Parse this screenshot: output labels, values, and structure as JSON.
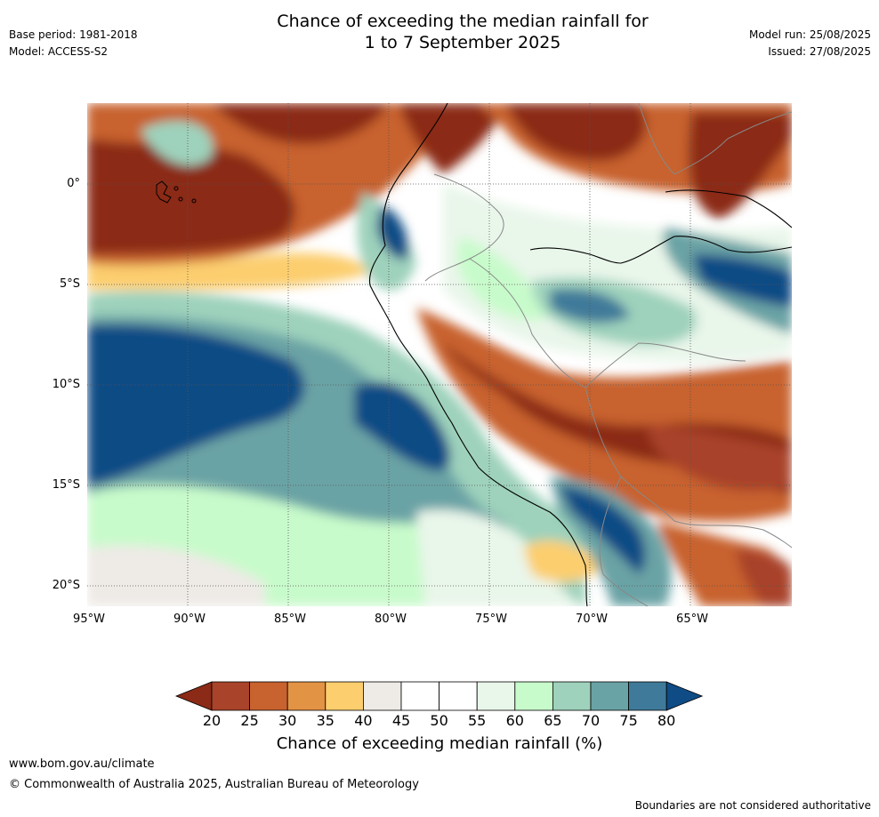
{
  "header": {
    "title_line1": "Chance of exceeding the median rainfall for",
    "title_line2": "1 to 7 September 2025",
    "base_period": "Base period: 1981-2018",
    "model": "Model: ACCESS-S2",
    "model_run": "Model run: 25/08/2025",
    "issued": "Issued: 27/08/2025"
  },
  "map": {
    "lat_labels": [
      "0°",
      "5°S",
      "10°S",
      "15°S",
      "20°S"
    ],
    "lon_labels": [
      "95°W",
      "90°W",
      "85°W",
      "80°W",
      "75°W",
      "70°W",
      "65°W"
    ]
  },
  "colorbar": {
    "ticks": [
      "20",
      "25",
      "30",
      "35",
      "40",
      "45",
      "50",
      "55",
      "60",
      "65",
      "70",
      "75",
      "80"
    ],
    "label": "Chance of exceeding median rainfall (%)",
    "colors": [
      "#8b2a16",
      "#a9432a",
      "#c8622f",
      "#e39344",
      "#fcce6e",
      "#eeeae6",
      "#ffffff",
      "#ffffff",
      "#e9f6ea",
      "#c8fbcb",
      "#9ed2bc",
      "#6aa3a5",
      "#3f7a9a",
      "#0f4b85"
    ]
  },
  "footer": {
    "website": "www.bom.gov.au/climate",
    "copyright": "© Commonwealth of Australia 2025, Australian Bureau of Meteorology",
    "disclaimer": "Boundaries are not considered authoritative"
  }
}
